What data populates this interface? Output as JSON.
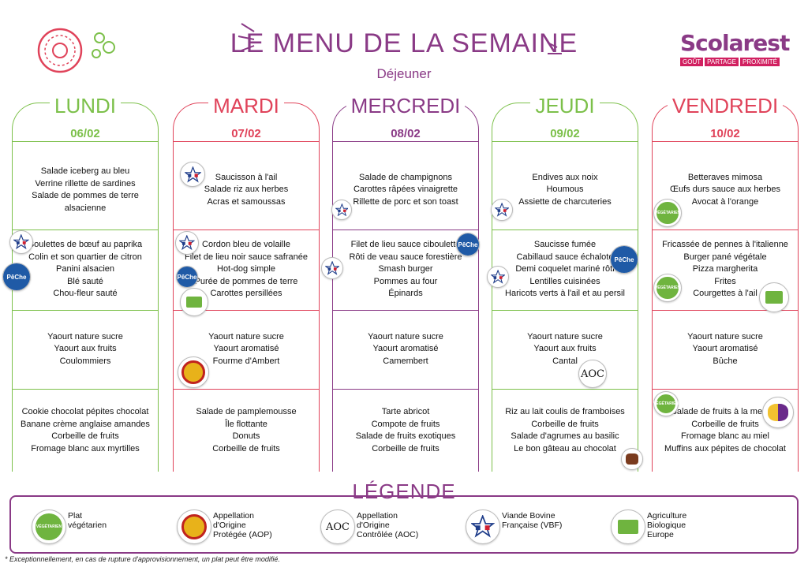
{
  "header": {
    "title": "LE MENU DE LA SEMAINE",
    "subtitle": "Déjeuner",
    "logo": {
      "name": "Scolarest",
      "tags": [
        "GOÛT",
        "PARTAGE",
        "PROXIMITÉ"
      ]
    }
  },
  "days": [
    {
      "name": "LUNDI",
      "date": "06/02",
      "color": "#7cc04a",
      "starter": [
        "Salade iceberg au bleu",
        "Verrine rillette de sardines",
        "Salade de pommes de terre",
        "alsacienne"
      ],
      "main": [
        "Boulettes de bœuf au paprika",
        "Colin et son quartier de citron",
        "Panini alsacien",
        "Blé sauté",
        "Chou-fleur sauté"
      ],
      "dairy": [
        "Yaourt nature sucre",
        "Yaourt aux fruits",
        "Coulommiers"
      ],
      "dessert": [
        "Cookie chocolat pépites chocolat",
        "Banane crème anglaise amandes",
        "Corbeille de fruits",
        "Fromage blanc aux myrtilles"
      ]
    },
    {
      "name": "MARDI",
      "date": "07/02",
      "color": "#e0435a",
      "starter": [
        "Saucisson à l'ail",
        "Salade riz aux herbes",
        "Acras et samoussas"
      ],
      "main": [
        "Cordon bleu de volaille",
        "Filet de lieu noir sauce safranée",
        "Hot-dog simple",
        "Purée de pommes de terre",
        "Carottes persillées"
      ],
      "dairy": [
        "Yaourt nature sucre",
        "Yaourt aromatisé",
        "Fourme d'Ambert"
      ],
      "dessert": [
        "Salade de pamplemousse",
        "Île flottante",
        "Donuts",
        "Corbeille de fruits"
      ]
    },
    {
      "name": "MERCREDI",
      "date": "08/02",
      "color": "#8a3a86",
      "starter": [
        "Salade de champignons",
        "Carottes râpées vinaigrette",
        "Rillette de porc et son toast"
      ],
      "main": [
        "Filet de lieu sauce ciboulette",
        "Rôti de veau sauce forestière",
        "Smash burger",
        "Pommes au four",
        "Épinards"
      ],
      "dairy": [
        "Yaourt nature sucre",
        "Yaourt aromatisé",
        "Camembert"
      ],
      "dessert": [
        "Tarte abricot",
        "Compote de fruits",
        "Salade de fruits exotiques",
        "Corbeille de fruits"
      ]
    },
    {
      "name": "JEUDI",
      "date": "09/02",
      "color": "#7cc04a",
      "starter": [
        "Endives aux noix",
        "Houmous",
        "Assiette de charcuteries"
      ],
      "main": [
        "Saucisse fumée",
        "Cabillaud sauce échalote",
        "Demi coquelet mariné rôti",
        "Lentilles cuisinées",
        "Haricots verts à l'ail et au persil"
      ],
      "dairy": [
        "Yaourt nature sucre",
        "Yaourt aux fruits",
        "Cantal"
      ],
      "dessert": [
        "Riz au lait coulis de framboises",
        "Corbeille de fruits",
        "Salade d'agrumes au basilic",
        "Le bon gâteau au chocolat"
      ]
    },
    {
      "name": "VENDREDI",
      "date": "10/02",
      "color": "#e0435a",
      "starter": [
        "Betteraves mimosa",
        "Œufs durs sauce aux herbes",
        "Avocat à l'orange"
      ],
      "main": [
        "Fricassée de pennes à l'italienne",
        "Burger pané végétale",
        "Pizza margherita",
        "Frites",
        "Courgettes à l'ail"
      ],
      "dairy": [
        "Yaourt nature sucre",
        "Yaourt aromatisé",
        "Bûche"
      ],
      "dessert": [
        "Salade de fruits à la menthe",
        "Corbeille de fruits",
        "Fromage blanc au miel",
        "Muffins aux pépites de chocolat"
      ]
    }
  ],
  "badge_labels": {
    "veg": "VÉGÉTARIEN",
    "peche": "PêChe",
    "aoc": "AOC"
  },
  "legend": {
    "title": "LÉGENDE",
    "items": [
      {
        "icon": "vegetarian-icon",
        "text": [
          "Plat",
          "végétarien"
        ]
      },
      {
        "icon": "aop-icon",
        "text": [
          "Appellation",
          "d'Origine",
          "Protégée (AOP)"
        ]
      },
      {
        "icon": "aoc-icon",
        "text": [
          "Appellation",
          "d'Origine",
          "Contrôlée (AOC)"
        ]
      },
      {
        "icon": "vbf-icon",
        "text": [
          "Viande Bovine",
          "Française (VBF)"
        ]
      },
      {
        "icon": "bio-icon",
        "text": [
          "Agriculture",
          "Biologique",
          "Europe"
        ]
      }
    ]
  },
  "footnote": "* Exceptionnellement, en cas de rupture d'approvisionnement, un plat peut être modifié."
}
